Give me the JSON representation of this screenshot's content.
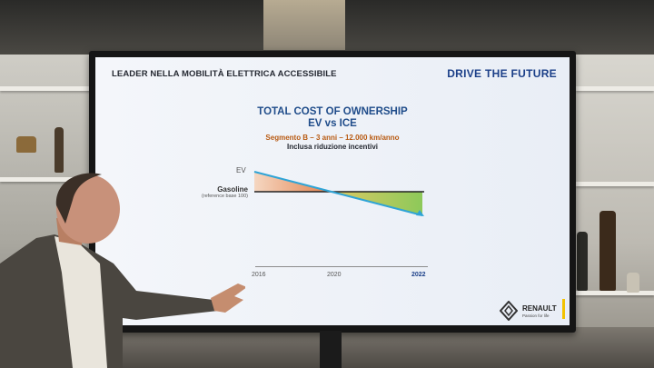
{
  "slide": {
    "header": "LEADER NELLA MOBILITÀ ELETTRICA ACCESSIBILE",
    "brand": "DRIVE THE FUTURE",
    "title_line1": "TOTAL COST OF OWNERSHIP",
    "title_line2": "EV vs ICE",
    "subtitle_line1": "Segmento B – 3 anni – 12.000 km/anno",
    "subtitle_line2": "Inclusa riduzione incentivi",
    "labels": {
      "ev": "EV",
      "gasoline": "Gasoline",
      "gasoline_note": "(reference base 100)"
    },
    "ticks": [
      "2016",
      "2020",
      "2022"
    ],
    "company": "RENAULT",
    "tagline": "Passion for life"
  },
  "colors": {
    "title_blue": "#1f4c8a",
    "ev_line": "#2fa4d6",
    "gas_line": "#222222",
    "area_orange": "#e47a3a",
    "area_green": "#96c83c",
    "renault_yellow": "#f2c200"
  }
}
